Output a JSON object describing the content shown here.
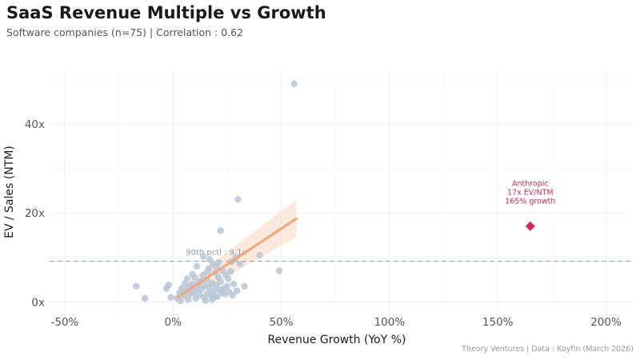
{
  "chart_data": {
    "type": "scatter",
    "title": "SaaS Revenue Multiple vs Growth",
    "subtitle": "Software companies (n=75) | Correlation : 0.62",
    "xlabel": "Revenue Growth (YoY %)",
    "ylabel": "EV / Sales (NTM)",
    "caption": "Theory Ventures | Data : Koyfin (March 2026)",
    "xlim": [
      -57,
      212
    ],
    "ylim": [
      -3,
      52
    ],
    "x_ticks": [
      -50,
      0,
      50,
      100,
      150,
      200
    ],
    "x_tick_labels": [
      "-50%",
      "0%",
      "50%",
      "100%",
      "150%",
      "200%"
    ],
    "y_ticks": [
      0,
      20,
      40
    ],
    "y_tick_labels": [
      "0x",
      "20x",
      "40x"
    ],
    "grid": true,
    "colors": {
      "points": "#b9c6d6",
      "highlight": "#d12a55",
      "trend": "#eea777",
      "band": "#fbe1d1",
      "ref_line": "#8b9bad"
    },
    "series": [
      {
        "points": [
          [
            56,
            49
          ],
          [
            30,
            23
          ],
          [
            22,
            16
          ],
          [
            40,
            10.5
          ],
          [
            49,
            7
          ],
          [
            -17,
            3.5
          ],
          [
            -13,
            0.8
          ],
          [
            -3,
            3
          ],
          [
            -2,
            3.8
          ],
          [
            -1,
            1
          ],
          [
            2,
            0.8
          ],
          [
            3,
            2
          ],
          [
            4,
            3
          ],
          [
            5,
            1.5
          ],
          [
            6,
            2.5
          ],
          [
            7,
            0.5
          ],
          [
            7.5,
            3.5
          ],
          [
            8,
            1.8
          ],
          [
            9,
            4
          ],
          [
            10,
            2.2
          ],
          [
            10.5,
            0.8
          ],
          [
            11,
            3
          ],
          [
            12,
            4.5
          ],
          [
            12.5,
            1.5
          ],
          [
            13,
            2.8
          ],
          [
            14,
            6
          ],
          [
            14.5,
            1
          ],
          [
            15,
            3.5
          ],
          [
            15.5,
            5
          ],
          [
            16,
            2
          ],
          [
            16.5,
            7.5
          ],
          [
            17,
            3.2
          ],
          [
            17.5,
            1.5
          ],
          [
            18,
            4.2
          ],
          [
            18.5,
            8.5
          ],
          [
            19,
            2.5
          ],
          [
            19.5,
            6.5
          ],
          [
            20,
            3.8
          ],
          [
            20.5,
            1.2
          ],
          [
            21,
            5.5
          ],
          [
            21.5,
            2.8
          ],
          [
            22,
            4.5
          ],
          [
            23,
            7
          ],
          [
            23.5,
            3
          ],
          [
            24,
            1.8
          ],
          [
            25,
            3.5
          ],
          [
            25.5,
            5.2
          ],
          [
            26,
            2.2
          ],
          [
            27,
            9
          ],
          [
            27.5,
            1.5
          ],
          [
            28,
            4
          ],
          [
            29,
            10
          ],
          [
            29.5,
            2.5
          ],
          [
            31,
            8.5
          ],
          [
            33,
            3.5
          ],
          [
            14,
            10.2
          ],
          [
            17,
            9.5
          ],
          [
            11,
            8
          ],
          [
            9,
            6.2
          ],
          [
            6.5,
            5.2
          ],
          [
            15,
            0.3
          ],
          [
            18,
            0.5
          ],
          [
            12,
            3.9
          ],
          [
            22.5,
            2.1
          ],
          [
            19,
            1
          ],
          [
            8.5,
            2.9
          ],
          [
            13.5,
            4.8
          ],
          [
            16,
            6.8
          ],
          [
            20,
            7.8
          ],
          [
            24.5,
            6
          ],
          [
            10,
            5.5
          ],
          [
            5.5,
            4.1
          ],
          [
            26.5,
            6.8
          ],
          [
            21,
            8.9
          ],
          [
            3.5,
            0.2
          ]
        ]
      },
      {
        "name": "Anthropic",
        "points": [
          [
            165,
            17
          ]
        ]
      }
    ],
    "annotation": {
      "lines": [
        "Anthropic",
        "17x EV/NTM",
        "165% growth"
      ],
      "x": 165,
      "y": 17
    },
    "reference_line": {
      "label": "90th pctl : 9.1x",
      "y": 9.1
    },
    "trend": {
      "x": [
        2,
        57
      ],
      "y": [
        1,
        18.7
      ],
      "band_lower": [
        -0.6,
        14.5
      ],
      "band_upper": [
        2.6,
        23
      ]
    }
  }
}
